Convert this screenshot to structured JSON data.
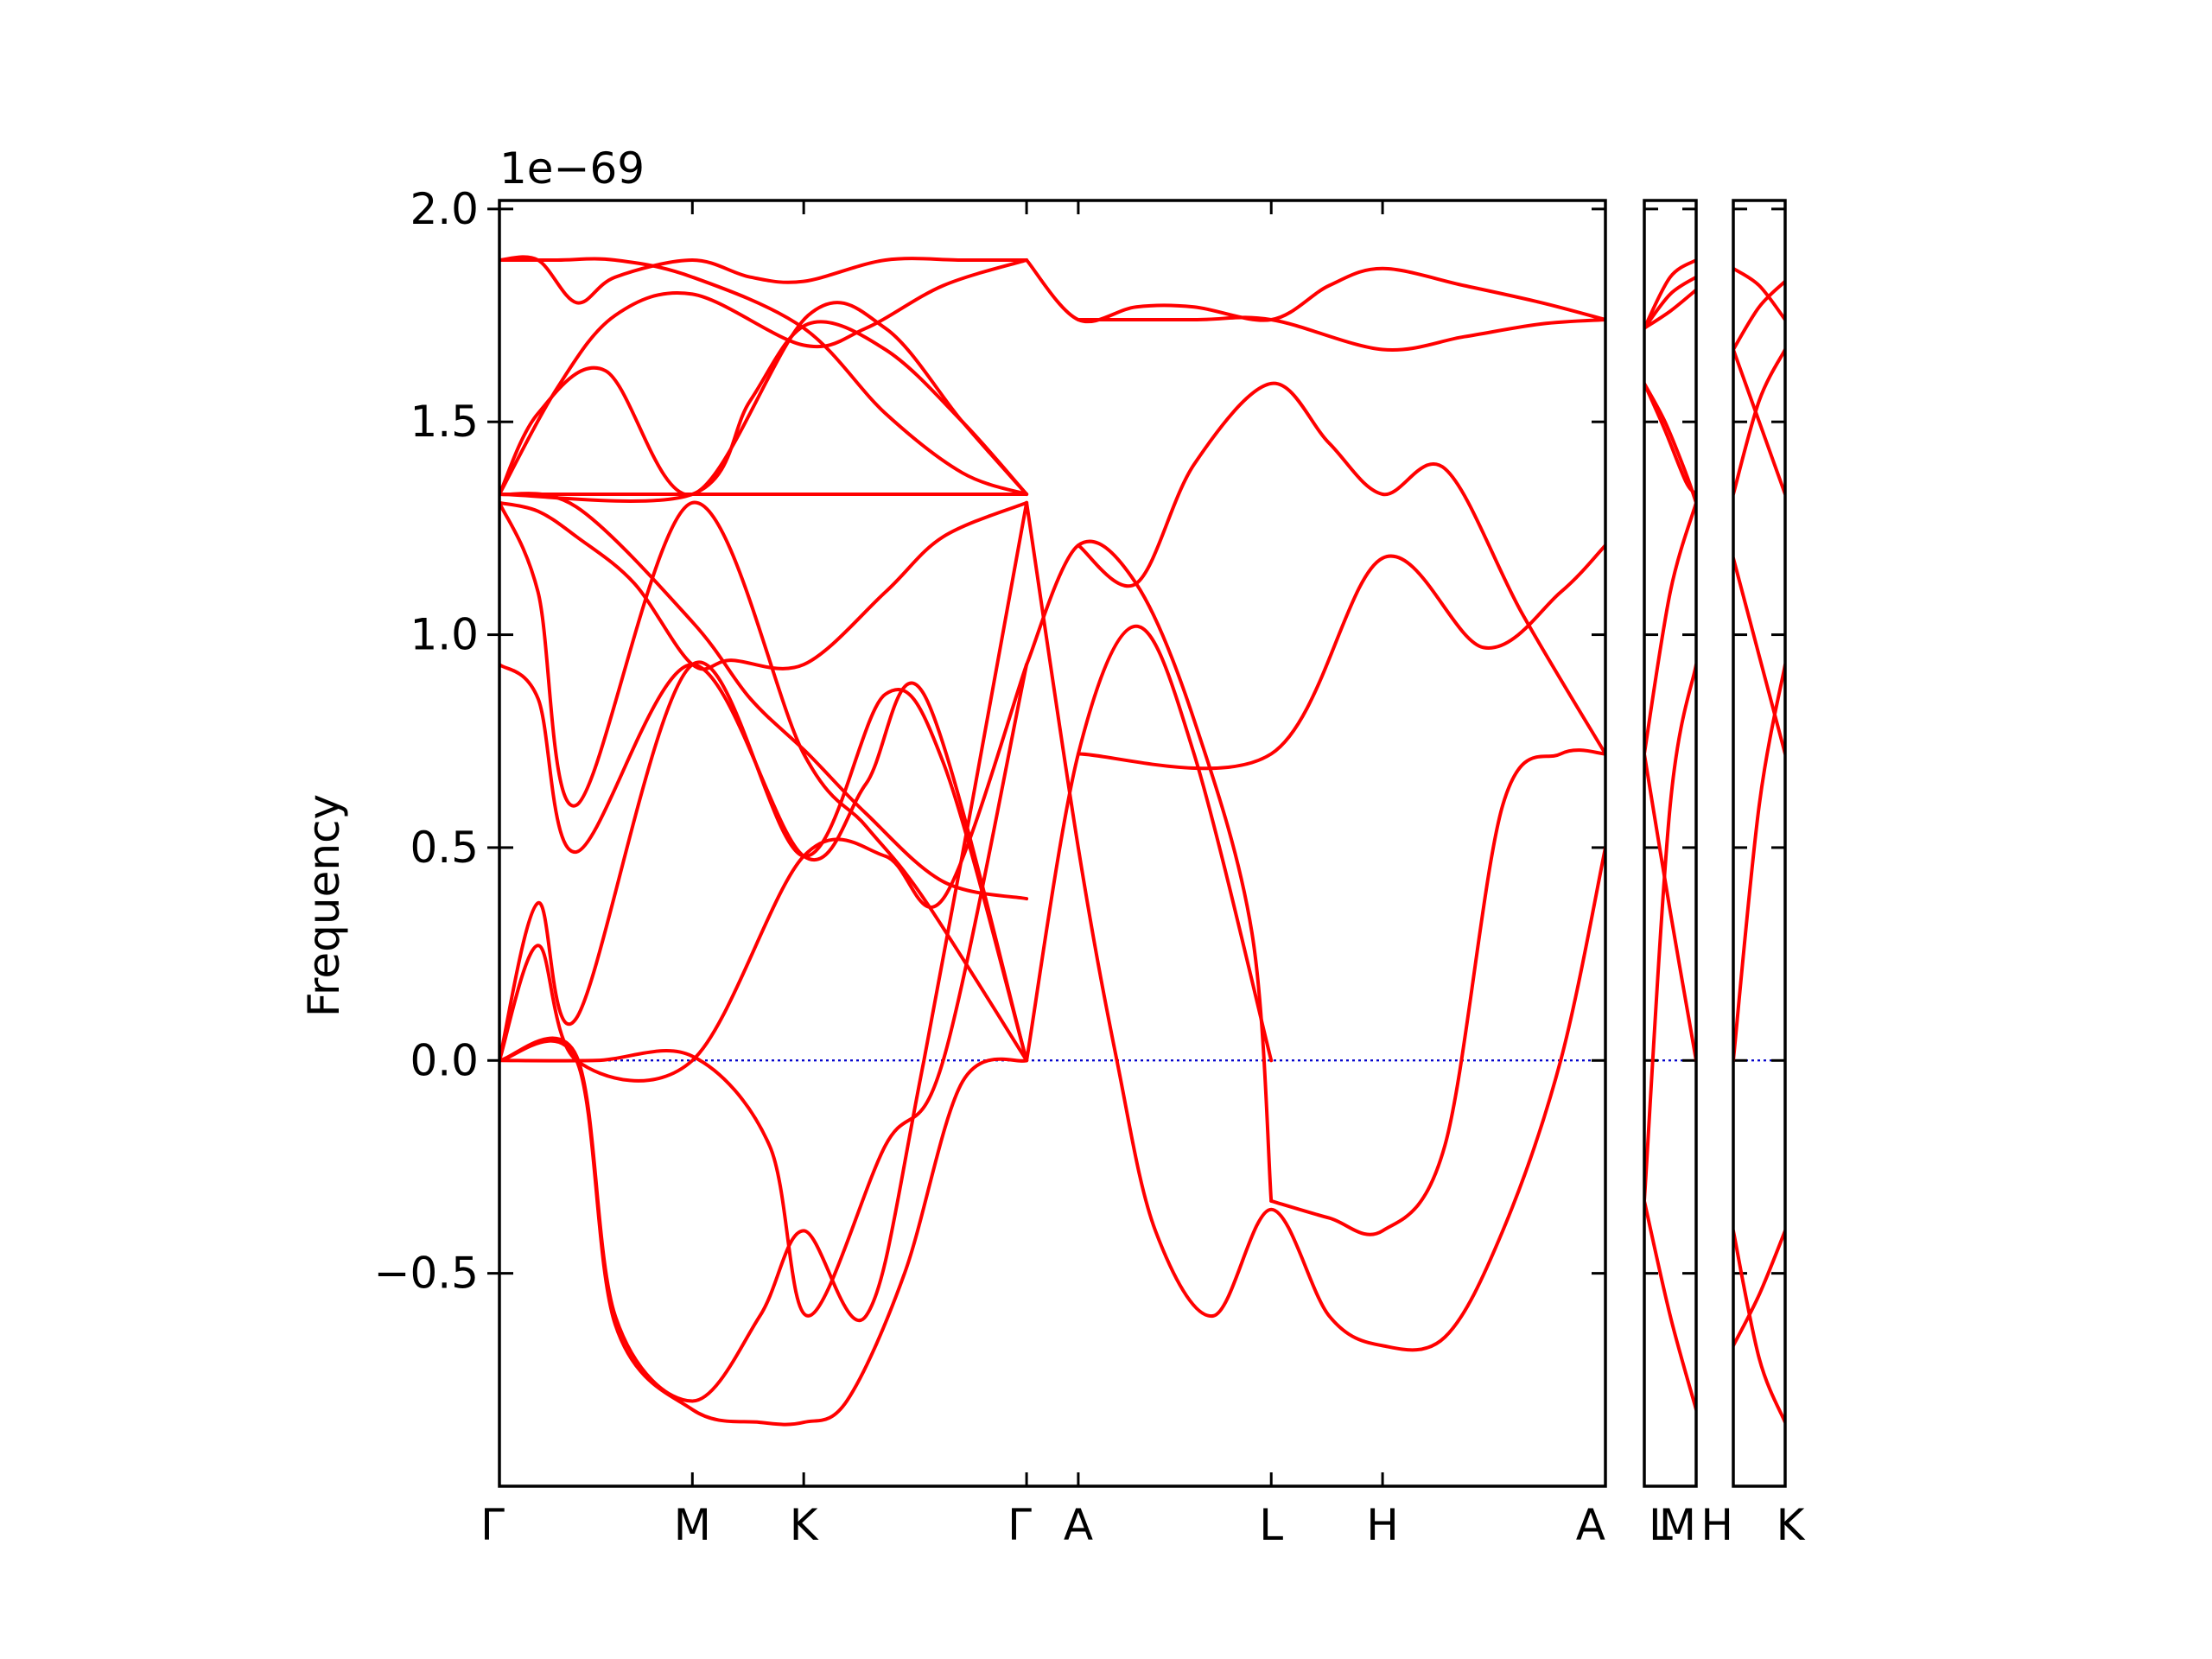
{
  "chart_data": {
    "type": "line",
    "title": "",
    "ylabel": "Frequency",
    "xlabel": "",
    "y_offset_text": "1e−69",
    "ylim": [
      -1.0,
      2.02
    ],
    "yticks": [
      -0.5,
      0.0,
      0.5,
      1.0,
      1.5,
      2.0
    ],
    "ytick_labels": [
      "−0.5",
      "0.0",
      "0.5",
      "1.0",
      "1.5",
      "2.0"
    ],
    "grid": false,
    "legend": "none",
    "colors": {
      "bands": "#ff0000",
      "zero_line": "#0000cc",
      "frame": "#000000"
    },
    "panels": [
      {
        "id": "main",
        "labels": [
          "Γ",
          "M",
          "K",
          "Γ",
          "A",
          "L",
          "H",
          "A"
        ],
        "positions": [
          0,
          1,
          1.577,
          2.732,
          3.0,
          4.0,
          4.577,
          5.732
        ],
        "series": [
          {
            "x": [
              0,
              0.2,
              0.4,
              0.6,
              1.0,
              1.3,
              1.577,
              2.0,
              2.4,
              2.732
            ],
            "y": [
              1.88,
              1.88,
              1.78,
              1.84,
              1.88,
              1.84,
              1.83,
              1.88,
              1.88,
              1.88
            ]
          },
          {
            "x": [
              0,
              0.3,
              0.6,
              1.0,
              1.577,
              2.0,
              2.4,
              2.732
            ],
            "y": [
              1.88,
              1.88,
              1.88,
              1.84,
              1.72,
              1.52,
              1.38,
              1.33
            ]
          },
          {
            "x": [
              0,
              0.3,
              0.6,
              1.0,
              1.577,
              1.9,
              2.3,
              2.732
            ],
            "y": [
              1.33,
              1.58,
              1.75,
              1.8,
              1.68,
              1.72,
              1.82,
              1.88
            ]
          },
          {
            "x": [
              0,
              0.2,
              0.55,
              1.0,
              1.6,
              2.0,
              2.4,
              2.732
            ],
            "y": [
              1.33,
              1.52,
              1.62,
              1.33,
              1.75,
              1.72,
              1.5,
              1.33
            ]
          },
          {
            "x": [
              0,
              1.0,
              1.6,
              2.0,
              2.4,
              2.732
            ],
            "y": [
              1.33,
              1.33,
              1.33,
              1.33,
              1.33,
              1.33
            ]
          },
          {
            "x": [
              0,
              1.0,
              1.3,
              1.6,
              2.0,
              2.4,
              2.732
            ],
            "y": [
              1.33,
              1.33,
              1.55,
              1.73,
              1.67,
              1.5,
              1.33
            ]
          },
          {
            "x": [
              0,
              0.4,
              1.0,
              1.3,
              1.6,
              1.9,
              2.3,
              2.732
            ],
            "y": [
              1.33,
              1.3,
              1.03,
              0.85,
              0.72,
              0.58,
              0.42,
              0.38
            ]
          },
          {
            "x": [
              0,
              0.2,
              0.4,
              0.7,
              1.0,
              1.2,
              1.577,
              2.0,
              2.3,
              2.732
            ],
            "y": [
              1.31,
              1.29,
              1.23,
              1.12,
              0.93,
              0.94,
              0.93,
              1.1,
              1.23,
              1.31
            ]
          },
          {
            "x": [
              0,
              0.2,
              0.4,
              1.0,
              1.577,
              1.9,
              2.2,
              2.732
            ],
            "y": [
              1.31,
              1.1,
              0.6,
              1.31,
              0.72,
              0.55,
              0.38,
              0.0
            ]
          },
          {
            "x": [
              0,
              0.2,
              0.4,
              1.0,
              1.577,
              1.9,
              2.2,
              2.732
            ],
            "y": [
              0.93,
              0.85,
              0.49,
              0.93,
              0.48,
              0.65,
              0.86,
              0.0
            ]
          },
          {
            "x": [
              0,
              0.2,
              0.4,
              1.0,
              1.577,
              2.0,
              2.3,
              2.732
            ],
            "y": [
              0.0,
              0.37,
              0.1,
              0.93,
              0.48,
              0.86,
              0.7,
              0.0
            ]
          },
          {
            "x": [
              0,
              0.2,
              0.4,
              1.0,
              1.577,
              2.0,
              2.3,
              2.732
            ],
            "y": [
              0.0,
              0.27,
              0.0,
              0.0,
              0.48,
              0.48,
              0.38,
              0.93
            ]
          },
          {
            "x": [
              0,
              0.4,
              0.6,
              1.0,
              1.35,
              1.577,
              1.8,
              2.1,
              2.4,
              2.732
            ],
            "y": [
              0.0,
              0.0,
              -0.62,
              -0.82,
              -0.85,
              -0.85,
              -0.8,
              -0.5,
              -0.05,
              0.0
            ]
          },
          {
            "x": [
              0,
              0.4,
              0.6,
              1.0,
              1.35,
              1.577,
              1.9,
              2.2,
              2.732
            ],
            "y": [
              0.0,
              0.01,
              -0.6,
              -0.8,
              -0.6,
              -0.4,
              -0.6,
              0.0,
              1.31
            ]
          },
          {
            "x": [
              0,
              0.5,
              1.0,
              1.4,
              1.6,
              2.0,
              2.3,
              2.732
            ],
            "y": [
              0.0,
              0.0,
              0.01,
              -0.2,
              -0.6,
              -0.2,
              0.0,
              0.93
            ]
          },
          {
            "x": [
              2.732,
              3.0,
              3.3,
              3.6,
              4.0,
              4.3,
              4.577,
              5.0,
              5.4,
              5.732
            ],
            "y": [
              1.88,
              1.74,
              1.77,
              1.77,
              1.74,
              1.82,
              1.86,
              1.82,
              1.78,
              1.74
            ]
          },
          {
            "x": [
              3.0,
              3.6,
              4.0,
              4.577,
              5.0,
              5.4,
              5.732
            ],
            "y": [
              1.74,
              1.74,
              1.74,
              1.67,
              1.7,
              1.73,
              1.74
            ]
          },
          {
            "x": [
              3.0,
              3.3,
              3.6,
              4.0,
              4.3,
              4.577,
              4.9,
              5.3,
              5.732
            ],
            "y": [
              1.21,
              1.12,
              1.4,
              1.59,
              1.45,
              1.33,
              1.39,
              1.05,
              0.72
            ]
          },
          {
            "x": [
              3.0,
              4.0,
              4.577,
              5.1,
              5.5,
              5.732
            ],
            "y": [
              0.72,
              0.72,
              1.18,
              0.97,
              1.1,
              1.21
            ]
          },
          {
            "x": [
              2.732,
              3.0,
              3.3,
              3.6,
              3.9,
              4.0
            ],
            "y": [
              0.93,
              1.21,
              1.12,
              0.8,
              0.3,
              -0.33
            ]
          },
          {
            "x": [
              2.732,
              3.0,
              3.3,
              3.6,
              4.0
            ],
            "y": [
              0.0,
              0.72,
              1.02,
              0.72,
              0.0
            ]
          },
          {
            "x": [
              2.732,
              3.0,
              3.2,
              3.4,
              3.7,
              4.0,
              4.3,
              4.577,
              4.9,
              5.2,
              5.5,
              5.732
            ],
            "y": [
              1.31,
              0.5,
              0.0,
              -0.4,
              -0.6,
              -0.35,
              -0.6,
              -0.67,
              -0.65,
              -0.4,
              0.0,
              0.5
            ]
          },
          {
            "x": [
              4.0,
              4.3,
              4.577,
              4.9,
              5.2,
              5.5,
              5.732
            ],
            "y": [
              -0.33,
              -0.37,
              -0.4,
              -0.2,
              0.6,
              0.72,
              0.72
            ]
          }
        ]
      },
      {
        "id": "L-M",
        "labels": [
          "L",
          "M"
        ],
        "positions": [
          0,
          1
        ],
        "series": [
          {
            "x": [
              0,
              0.5,
              1.0
            ],
            "y": [
              1.72,
              1.84,
              1.88
            ]
          },
          {
            "x": [
              0,
              0.5,
              1.0
            ],
            "y": [
              1.72,
              1.8,
              1.84
            ]
          },
          {
            "x": [
              0,
              0.5,
              1.0
            ],
            "y": [
              1.72,
              1.76,
              1.81
            ]
          },
          {
            "x": [
              0,
              0.4,
              0.8,
              1.0
            ],
            "y": [
              1.59,
              1.5,
              1.38,
              1.31
            ]
          },
          {
            "x": [
              0,
              0.4,
              0.8,
              1.0
            ],
            "y": [
              1.59,
              1.48,
              1.36,
              1.33
            ]
          },
          {
            "x": [
              0,
              0.5,
              1.0
            ],
            "y": [
              0.72,
              1.1,
              1.31
            ]
          },
          {
            "x": [
              0,
              0.5,
              1.0
            ],
            "y": [
              -0.33,
              0.6,
              0.93
            ]
          },
          {
            "x": [
              0,
              0.5,
              1.0
            ],
            "y": [
              0.72,
              0.35,
              0.0
            ]
          },
          {
            "x": [
              0,
              0.5,
              1.0
            ],
            "y": [
              -0.33,
              -0.6,
              -0.82
            ]
          }
        ]
      },
      {
        "id": "H-K",
        "labels": [
          "H",
          "K"
        ],
        "positions": [
          0,
          1
        ],
        "series": [
          {
            "x": [
              0,
              0.5,
              1.0
            ],
            "y": [
              1.86,
              1.82,
              1.74
            ]
          },
          {
            "x": [
              0,
              0.5,
              1.0
            ],
            "y": [
              1.67,
              1.77,
              1.83
            ]
          },
          {
            "x": [
              0,
              0.5,
              1.0
            ],
            "y": [
              1.67,
              1.5,
              1.33
            ]
          },
          {
            "x": [
              0,
              0.5,
              1.0
            ],
            "y": [
              1.33,
              1.55,
              1.67
            ]
          },
          {
            "x": [
              0,
              0.5,
              1.0
            ],
            "y": [
              1.18,
              0.95,
              0.72
            ]
          },
          {
            "x": [
              0,
              0.5,
              1.0
            ],
            "y": [
              0.0,
              0.6,
              0.93
            ]
          },
          {
            "x": [
              0,
              0.5,
              1.0
            ],
            "y": [
              -0.4,
              -0.7,
              -0.85
            ]
          },
          {
            "x": [
              0,
              0.5,
              1.0
            ],
            "y": [
              -0.67,
              -0.55,
              -0.4
            ]
          }
        ]
      }
    ]
  }
}
